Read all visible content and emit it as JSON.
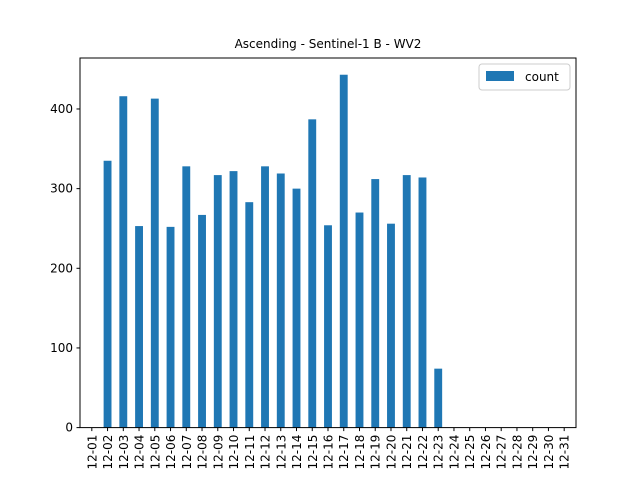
{
  "chart_data": {
    "type": "bar",
    "title": "Ascending - Sentinel-1 B - WV2",
    "xlabel": "",
    "ylabel": "",
    "categories": [
      "12-01",
      "12-02",
      "12-03",
      "12-04",
      "12-05",
      "12-06",
      "12-07",
      "12-08",
      "12-09",
      "12-10",
      "12-11",
      "12-12",
      "12-13",
      "12-14",
      "12-15",
      "12-16",
      "12-17",
      "12-18",
      "12-19",
      "12-20",
      "12-21",
      "12-22",
      "12-23",
      "12-24",
      "12-25",
      "12-26",
      "12-27",
      "12-28",
      "12-29",
      "12-30",
      "12-31"
    ],
    "series": [
      {
        "name": "count",
        "color": "#1f77b4",
        "values": [
          0,
          335,
          416,
          253,
          413,
          252,
          328,
          267,
          317,
          322,
          283,
          328,
          319,
          300,
          387,
          254,
          443,
          270,
          312,
          256,
          317,
          314,
          74,
          0,
          0,
          0,
          0,
          0,
          0,
          0,
          0
        ]
      }
    ],
    "ylim": [
      0,
      464
    ],
    "yticks": [
      0,
      100,
      200,
      300,
      400
    ],
    "grid": false,
    "legend_position": "top-right"
  }
}
